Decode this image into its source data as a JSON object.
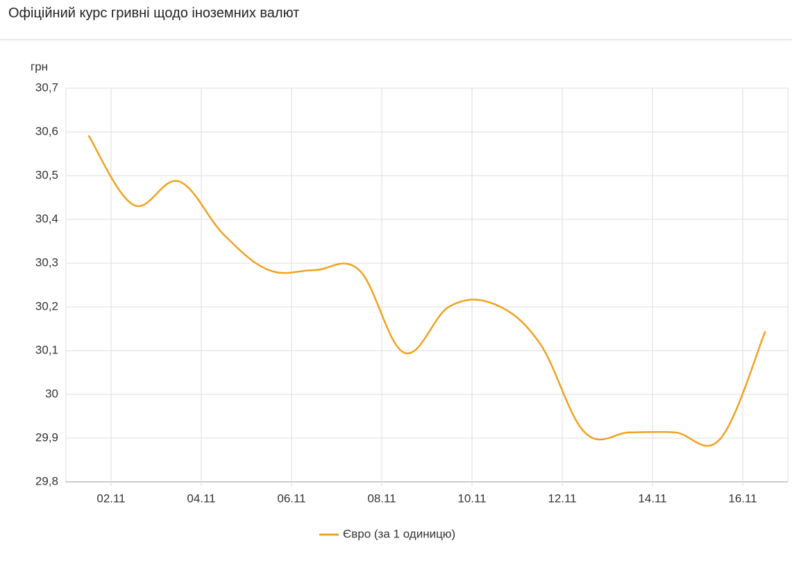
{
  "header": {
    "title": "Офіційний курс гривні щодо іноземних валют"
  },
  "chart_data": {
    "type": "line",
    "y_label": "грн",
    "x": [
      1.5,
      2.5,
      3.5,
      4.5,
      5.5,
      6.5,
      7.5,
      8.5,
      9.5,
      10.5,
      11.5,
      12.5,
      13.5,
      14.5,
      15.5,
      16.5
    ],
    "series": [
      {
        "name": "Євро (за 1 одиницю)",
        "color": "#f0a21e",
        "values": [
          30.592,
          30.433,
          30.487,
          30.365,
          30.284,
          30.284,
          30.284,
          30.095,
          30.201,
          30.206,
          30.117,
          29.913,
          29.913,
          29.913,
          29.898,
          30.144
        ]
      }
    ],
    "xlim": [
      1,
      17
    ],
    "xticks": [
      {
        "value": 2,
        "label": "02.11"
      },
      {
        "value": 4,
        "label": "04.11"
      },
      {
        "value": 6,
        "label": "06.11"
      },
      {
        "value": 8,
        "label": "08.11"
      },
      {
        "value": 10,
        "label": "10.11"
      },
      {
        "value": 12,
        "label": "12.11"
      },
      {
        "value": 14,
        "label": "14.11"
      },
      {
        "value": 16,
        "label": "16.11"
      }
    ],
    "ylim": [
      29.8,
      30.7
    ],
    "yticks": [
      {
        "value": 29.8,
        "label": "29,8"
      },
      {
        "value": 29.9,
        "label": "29,9"
      },
      30,
      {
        "value": 30.1,
        "label": "30,1"
      },
      {
        "value": 30.2,
        "label": "30,2"
      },
      {
        "value": 30.3,
        "label": "30,3"
      },
      {
        "value": 30.4,
        "label": "30,4"
      },
      {
        "value": 30.5,
        "label": "30,5"
      },
      {
        "value": 30.6,
        "label": "30,6"
      },
      {
        "value": 30.7,
        "label": "30,7"
      }
    ],
    "grid": true,
    "legend": "bottom"
  }
}
